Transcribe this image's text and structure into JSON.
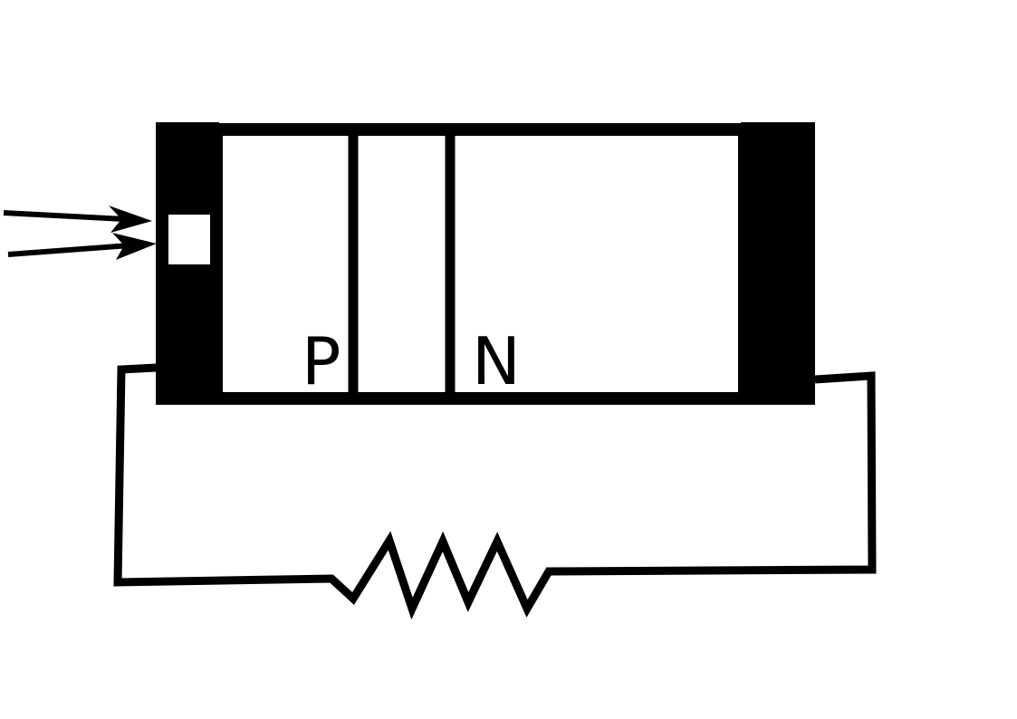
{
  "diagram": {
    "p_label": "P",
    "n_label": "N"
  },
  "colors": {
    "stroke": "#000000",
    "fill": "#000000",
    "background": "#ffffff"
  },
  "icons": {
    "incoming_light": "arrow-right-icon",
    "load": "resistor-icon"
  }
}
